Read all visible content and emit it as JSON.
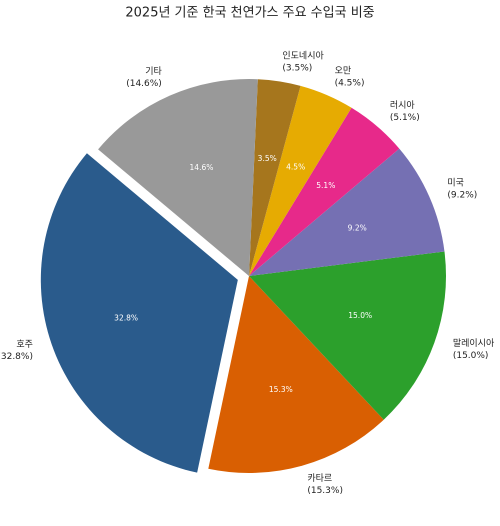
{
  "chart_data": {
    "type": "pie",
    "title": "2025년 기준 한국 천연가스 주요 수입국 비중",
    "categories": [
      "호주",
      "카타르",
      "말레이시아",
      "미국",
      "러시아",
      "오만",
      "인도네시아",
      "기타"
    ],
    "values": [
      32.8,
      15.3,
      15.0,
      9.2,
      5.1,
      4.5,
      3.5,
      14.6
    ],
    "value_labels": [
      "32.8%",
      "15.3%",
      "15.0%",
      "9.2%",
      "5.1%",
      "4.5%",
      "3.5%",
      "14.6%"
    ],
    "outer_value_labels": [
      "(32.8%)",
      "(15.3%)",
      "(15.0%)",
      "(9.2%)",
      "(5.1%)",
      "(4.5%)",
      "(3.5%)",
      "(14.6%)"
    ],
    "colors": [
      "#2a5b8c",
      "#d95f02",
      "#2ca02c",
      "#7570b3",
      "#e7298a",
      "#e6ab02",
      "#a6761d",
      "#999999"
    ],
    "explode": [
      true,
      false,
      false,
      false,
      false,
      false,
      false,
      false
    ]
  }
}
